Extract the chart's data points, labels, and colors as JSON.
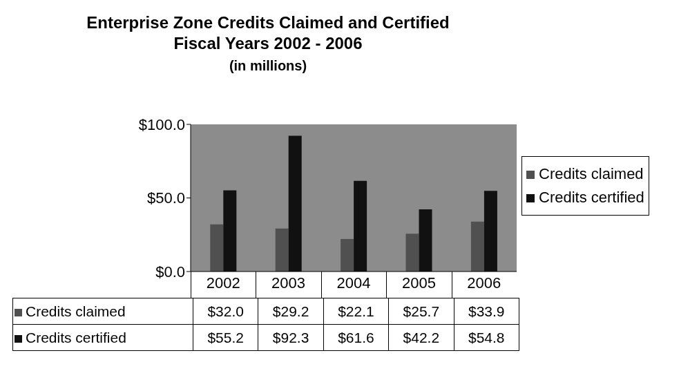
{
  "chart_data": {
    "type": "bar",
    "title": "Enterprise Zone Credits Claimed and Certified\nFiscal Years 2002 - 2006",
    "subtitle": "(in millions)",
    "categories": [
      "2002",
      "2003",
      "2004",
      "2005",
      "2006"
    ],
    "series": [
      {
        "name": "Credits claimed",
        "color": "#505050",
        "values": [
          32.0,
          29.2,
          22.1,
          25.7,
          33.9
        ],
        "value_labels": [
          "$32.0",
          "$29.2",
          "$22.1",
          "$25.7",
          "$33.9"
        ]
      },
      {
        "name": "Credits certified",
        "color": "#111111",
        "values": [
          55.2,
          92.3,
          61.6,
          42.2,
          54.8
        ],
        "value_labels": [
          "$55.2",
          "$92.3",
          "$61.6",
          "$42.2",
          "$54.8"
        ]
      }
    ],
    "ylim": [
      0,
      100
    ],
    "yticks": [
      {
        "value": 0,
        "label": "$0.0"
      },
      {
        "value": 50,
        "label": "$50.0"
      },
      {
        "value": 100,
        "label": "$100.0"
      }
    ],
    "grid": false,
    "legend": "right"
  }
}
